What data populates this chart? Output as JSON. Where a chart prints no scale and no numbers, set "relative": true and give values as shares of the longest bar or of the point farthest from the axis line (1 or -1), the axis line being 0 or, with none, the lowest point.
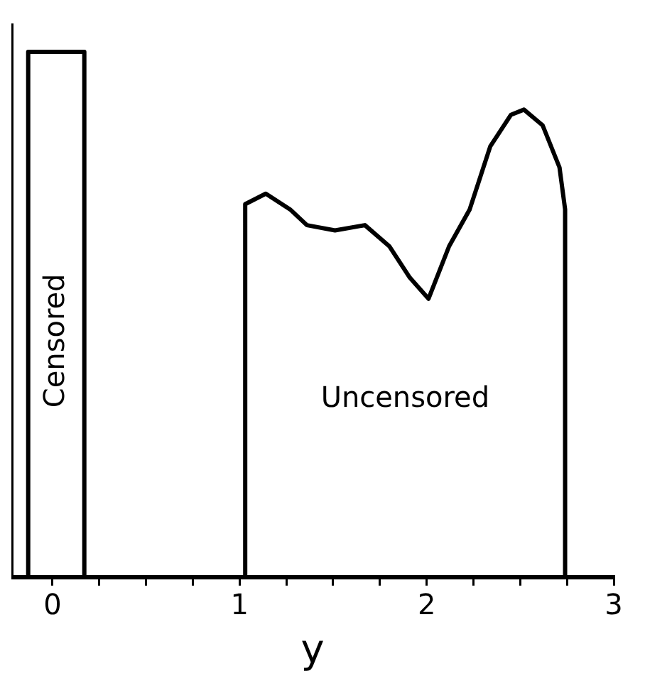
{
  "chart_data": {
    "type": "line",
    "xlabel": "y",
    "relative": true,
    "grid": false,
    "legend": false,
    "marker": "none",
    "line_style": "solid",
    "xlim": [
      -0.22,
      3.0
    ],
    "xticks": [
      0,
      {
        "value": 0.25,
        "label": null
      },
      {
        "value": 0.5,
        "label": null
      },
      {
        "value": 0.75,
        "label": null
      },
      1,
      {
        "value": 1.25,
        "label": null
      },
      {
        "value": 1.5,
        "label": null
      },
      {
        "value": 1.75,
        "label": null
      },
      2,
      {
        "value": 2.25,
        "label": null
      },
      {
        "value": 2.5,
        "label": null
      },
      {
        "value": 2.75,
        "label": null
      },
      3
    ],
    "series": [
      {
        "name": "Censored",
        "color": "#000000",
        "x": [
          -0.13,
          -0.13,
          0.17,
          0.17
        ],
        "values": [
          0,
          1,
          1,
          0
        ]
      },
      {
        "name": "Uncensored",
        "color": "#000000",
        "x": [
          1.03,
          1.03,
          1.14,
          1.27,
          1.36,
          1.51,
          1.67,
          1.8,
          1.91,
          2.01,
          2.12,
          2.23,
          2.34,
          2.45,
          2.52,
          2.62,
          2.71,
          2.74,
          2.74
        ],
        "values": [
          0,
          0.71,
          0.73,
          0.7,
          0.67,
          0.66,
          0.67,
          0.63,
          0.57,
          0.53,
          0.63,
          0.7,
          0.82,
          0.88,
          0.89,
          0.86,
          0.78,
          0.7,
          0
        ]
      }
    ]
  }
}
